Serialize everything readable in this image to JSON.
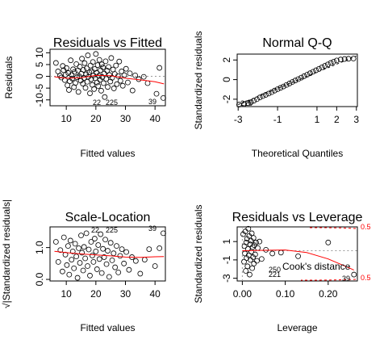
{
  "chart_data": [
    {
      "type": "scatter",
      "panel": "residuals-vs-fitted",
      "title": "Residuals vs Fitted",
      "xlabel": "Fitted values",
      "ylabel": "Residuals",
      "xlim": [
        4.5,
        43.5
      ],
      "ylim": [
        -12.5,
        11.5
      ],
      "xticks": [
        10,
        20,
        30,
        40
      ],
      "yticks": [
        -10,
        -5,
        0,
        5,
        10
      ],
      "smoother_color": "#ff0000",
      "smoother": [
        [
          6,
          -0.2
        ],
        [
          10,
          -0.8
        ],
        [
          15,
          -0.6
        ],
        [
          20,
          0.4
        ],
        [
          25,
          0.3
        ],
        [
          30,
          -0.8
        ],
        [
          35,
          -1.5
        ],
        [
          40,
          -2.3
        ],
        [
          43,
          -3.2
        ]
      ],
      "points": [
        [
          6.5,
          5.7
        ],
        [
          7.2,
          2.1
        ],
        [
          7.9,
          0.3
        ],
        [
          8.3,
          -0.5
        ],
        [
          8.8,
          4.4
        ],
        [
          9.1,
          2.6
        ],
        [
          9.5,
          -1.6
        ],
        [
          9.8,
          0.7
        ],
        [
          10.1,
          3.5
        ],
        [
          10.4,
          -3.8
        ],
        [
          10.7,
          1.4
        ],
        [
          10.9,
          -5.8
        ],
        [
          11.2,
          -2.1
        ],
        [
          11.5,
          6.8
        ],
        [
          11.8,
          0.6
        ],
        [
          12.0,
          -0.9
        ],
        [
          12.3,
          3.0
        ],
        [
          12.6,
          -4.6
        ],
        [
          12.8,
          1.9
        ],
        [
          13.1,
          -2.8
        ],
        [
          13.4,
          5.2
        ],
        [
          13.6,
          -0.4
        ],
        [
          13.9,
          2.5
        ],
        [
          14.1,
          -6.6
        ],
        [
          14.4,
          0.0
        ],
        [
          14.6,
          4.1
        ],
        [
          14.9,
          -1.8
        ],
        [
          15.1,
          1.1
        ],
        [
          15.3,
          7.5
        ],
        [
          15.6,
          -3.1
        ],
        [
          15.8,
          2.8
        ],
        [
          16.0,
          -0.7
        ],
        [
          16.2,
          5.6
        ],
        [
          16.5,
          -4.9
        ],
        [
          16.7,
          0.9
        ],
        [
          16.9,
          3.4
        ],
        [
          17.1,
          -2.3
        ],
        [
          17.3,
          8.9
        ],
        [
          17.5,
          -0.2
        ],
        [
          17.8,
          1.7
        ],
        [
          18.0,
          -7.2
        ],
        [
          18.2,
          4.6
        ],
        [
          18.4,
          -1.2
        ],
        [
          18.6,
          2.2
        ],
        [
          18.8,
          -3.6
        ],
        [
          19.0,
          6.1
        ],
        [
          19.2,
          0.4
        ],
        [
          19.4,
          -5.4
        ],
        [
          19.6,
          3.1
        ],
        [
          19.8,
          -0.8
        ],
        [
          20.0,
          9.5
        ],
        [
          20.2,
          1.5
        ],
        [
          20.4,
          -2.6
        ],
        [
          20.6,
          4.8
        ],
        [
          20.8,
          -4.1
        ],
        [
          21.0,
          0.2
        ],
        [
          21.2,
          7.0
        ],
        [
          21.4,
          -1.5
        ],
        [
          21.6,
          2.6
        ],
        [
          21.8,
          -6.1
        ],
        [
          22.0,
          5.1
        ],
        [
          22.2,
          -0.3
        ],
        [
          22.4,
          3.8
        ],
        [
          22.6,
          -2.9
        ],
        [
          22.8,
          1.2
        ],
        [
          23.0,
          -8.8
        ],
        [
          23.3,
          6.4
        ],
        [
          23.5,
          -1.1
        ],
        [
          23.8,
          2.4
        ],
        [
          24.0,
          -4.5
        ],
        [
          24.3,
          4.0
        ],
        [
          24.6,
          0.6
        ],
        [
          24.9,
          -2.2
        ],
        [
          25.2,
          7.8
        ],
        [
          25.5,
          -0.6
        ],
        [
          25.8,
          2.9
        ],
        [
          26.1,
          -5.1
        ],
        [
          26.4,
          1.0
        ],
        [
          26.8,
          4.6
        ],
        [
          27.1,
          -3.3
        ],
        [
          27.5,
          0.1
        ],
        [
          27.9,
          6.3
        ],
        [
          28.3,
          -1.9
        ],
        [
          28.7,
          2.1
        ],
        [
          29.1,
          -4.0
        ],
        [
          29.6,
          0.5
        ],
        [
          30.2,
          3.2
        ],
        [
          30.8,
          -2.6
        ],
        [
          31.5,
          1.3
        ],
        [
          32.4,
          -6.0
        ],
        [
          33.3,
          0.4
        ],
        [
          34.5,
          -1.2
        ],
        [
          36.2,
          -0.2
        ],
        [
          37.5,
          -2.9
        ],
        [
          40.5,
          -7.4
        ],
        [
          41.5,
          3.6
        ],
        [
          42.8,
          -9.2
        ]
      ],
      "point_labels": [
        "22",
        "225",
        "39"
      ]
    },
    {
      "type": "scatter",
      "panel": "normal-qq",
      "title": "Normal Q-Q",
      "xlabel": "Theoretical Quantiles",
      "ylabel": "Standardized residuals",
      "xlim": [
        -3.05,
        3.05
      ],
      "ylim": [
        -2.75,
        2.6
      ],
      "xticks": [
        -3,
        -1,
        1,
        2,
        3
      ],
      "yticks": [
        -2,
        0,
        2
      ],
      "reference_line": [
        [
          -3,
          -2.55
        ],
        [
          3,
          2.4
        ]
      ],
      "points": [
        [
          -2.95,
          -2.55
        ],
        [
          -2.7,
          -2.48
        ],
        [
          -2.5,
          -2.4
        ],
        [
          -2.35,
          -2.3
        ],
        [
          -2.2,
          -2.15
        ],
        [
          -2.05,
          -2.0
        ],
        [
          -1.9,
          -1.82
        ],
        [
          -1.75,
          -1.68
        ],
        [
          -1.6,
          -1.55
        ],
        [
          -1.45,
          -1.42
        ],
        [
          -1.3,
          -1.28
        ],
        [
          -1.15,
          -1.12
        ],
        [
          -1.0,
          -0.98
        ],
        [
          -0.85,
          -0.84
        ],
        [
          -0.7,
          -0.7
        ],
        [
          -0.55,
          -0.55
        ],
        [
          -0.4,
          -0.4
        ],
        [
          -0.25,
          -0.24
        ],
        [
          -0.1,
          -0.09
        ],
        [
          0.05,
          0.05
        ],
        [
          0.2,
          0.2
        ],
        [
          0.35,
          0.35
        ],
        [
          0.5,
          0.5
        ],
        [
          0.65,
          0.65
        ],
        [
          0.8,
          0.8
        ],
        [
          0.95,
          0.95
        ],
        [
          1.1,
          1.1
        ],
        [
          1.25,
          1.25
        ],
        [
          1.4,
          1.4
        ],
        [
          1.55,
          1.55
        ],
        [
          1.7,
          1.7
        ],
        [
          1.85,
          1.83
        ],
        [
          2.0,
          1.95
        ],
        [
          2.2,
          2.05
        ],
        [
          2.4,
          2.1
        ],
        [
          2.6,
          2.12
        ],
        [
          2.85,
          2.15
        ]
      ],
      "point_labels": [
        "225"
      ]
    },
    {
      "type": "scatter",
      "panel": "scale-location",
      "title": "Scale-Location",
      "xlabel": "Fitted values",
      "ylabel": "√|Standardized residuals|",
      "xlim": [
        4.5,
        43.5
      ],
      "ylim": [
        -0.05,
        1.65
      ],
      "xticks": [
        10,
        20,
        30,
        40
      ],
      "yticks": [
        0.0,
        1.0
      ],
      "yticklabels": [
        "0.0",
        "1.0"
      ],
      "smoother_color": "#ff0000",
      "smoother": [
        [
          6,
          0.88
        ],
        [
          10,
          0.84
        ],
        [
          15,
          0.8
        ],
        [
          20,
          0.77
        ],
        [
          25,
          0.74
        ],
        [
          30,
          0.7
        ],
        [
          35,
          0.69
        ],
        [
          40,
          0.71
        ],
        [
          43,
          0.72
        ]
      ],
      "points": [
        [
          6.5,
          1.18
        ],
        [
          7.3,
          0.55
        ],
        [
          8.0,
          0.92
        ],
        [
          8.7,
          0.25
        ],
        [
          9.2,
          1.32
        ],
        [
          9.7,
          0.78
        ],
        [
          10.2,
          0.45
        ],
        [
          10.6,
          1.05
        ],
        [
          11.0,
          0.15
        ],
        [
          11.4,
          1.22
        ],
        [
          11.8,
          0.62
        ],
        [
          12.2,
          0.88
        ],
        [
          12.6,
          0.35
        ],
        [
          13.0,
          1.12
        ],
        [
          13.4,
          0.72
        ],
        [
          13.8,
          0.05
        ],
        [
          14.2,
          0.98
        ],
        [
          14.6,
          0.52
        ],
        [
          15.0,
          1.38
        ],
        [
          15.3,
          0.84
        ],
        [
          15.7,
          0.28
        ],
        [
          16.0,
          1.02
        ],
        [
          16.4,
          0.66
        ],
        [
          16.8,
          1.45
        ],
        [
          17.2,
          0.42
        ],
        [
          17.6,
          0.94
        ],
        [
          18.0,
          0.12
        ],
        [
          18.4,
          1.18
        ],
        [
          18.8,
          0.75
        ],
        [
          19.2,
          0.55
        ],
        [
          19.6,
          1.28
        ],
        [
          20.0,
          0.88
        ],
        [
          20.4,
          0.32
        ],
        [
          20.8,
          1.08
        ],
        [
          21.2,
          0.64
        ],
        [
          21.6,
          1.42
        ],
        [
          22.0,
          0.2
        ],
        [
          22.4,
          0.96
        ],
        [
          22.8,
          0.7
        ],
        [
          23.2,
          1.25
        ],
        [
          23.6,
          0.48
        ],
        [
          24.0,
          0.9
        ],
        [
          24.5,
          0.08
        ],
        [
          25.0,
          1.15
        ],
        [
          25.5,
          0.6
        ],
        [
          26.0,
          0.82
        ],
        [
          26.5,
          0.38
        ],
        [
          27.0,
          1.05
        ],
        [
          27.6,
          0.22
        ],
        [
          28.2,
          0.74
        ],
        [
          28.8,
          0.95
        ],
        [
          29.5,
          0.5
        ],
        [
          30.3,
          0.86
        ],
        [
          31.2,
          0.3
        ],
        [
          32.2,
          0.7
        ],
        [
          33.5,
          0.58
        ],
        [
          35.0,
          0.18
        ],
        [
          36.5,
          0.62
        ],
        [
          38.0,
          0.95
        ],
        [
          40.0,
          0.42
        ],
        [
          41.5,
          0.98
        ],
        [
          42.8,
          1.45
        ]
      ],
      "point_labels": [
        "22",
        "225",
        "39"
      ]
    },
    {
      "type": "scatter",
      "panel": "residuals-vs-leverage",
      "title": "Residuals vs Leverage",
      "xlabel": "Leverage",
      "ylabel": "Standardized residuals",
      "xlim": [
        -0.012,
        0.268
      ],
      "ylim": [
        -3.3,
        2.6
      ],
      "xticks": [
        0.0,
        0.1,
        0.2
      ],
      "xticklabels": [
        "0.00",
        "0.10",
        "0.20"
      ],
      "yticks": [
        -3,
        -1,
        1
      ],
      "smoother_color": "#ff0000",
      "smoother": [
        [
          0.0,
          0.0
        ],
        [
          0.05,
          0.05
        ],
        [
          0.1,
          0.08
        ],
        [
          0.15,
          -0.2
        ],
        [
          0.2,
          -0.9
        ],
        [
          0.25,
          -1.9
        ],
        [
          0.26,
          -2.1
        ]
      ],
      "cooks_contour_label": "Cook's distance",
      "cooks_contour_color": "#ff0000",
      "cooks_level_labels": [
        "0.5",
        "0.5"
      ],
      "points": [
        [
          0.002,
          1.8
        ],
        [
          0.004,
          -1.2
        ],
        [
          0.005,
          0.5
        ],
        [
          0.006,
          -0.3
        ],
        [
          0.007,
          2.1
        ],
        [
          0.008,
          -2.2
        ],
        [
          0.009,
          0.9
        ],
        [
          0.01,
          -0.8
        ],
        [
          0.011,
          1.3
        ],
        [
          0.012,
          -1.7
        ],
        [
          0.013,
          0.2
        ],
        [
          0.014,
          2.4
        ],
        [
          0.015,
          -0.5
        ],
        [
          0.016,
          1.6
        ],
        [
          0.017,
          -2.6
        ],
        [
          0.018,
          0.7
        ],
        [
          0.019,
          -1.0
        ],
        [
          0.02,
          1.1
        ],
        [
          0.021,
          -0.1
        ],
        [
          0.022,
          1.9
        ],
        [
          0.023,
          -1.9
        ],
        [
          0.024,
          0.4
        ],
        [
          0.025,
          -0.7
        ],
        [
          0.026,
          1.4
        ],
        [
          0.027,
          -1.4
        ],
        [
          0.028,
          0.6
        ],
        [
          0.03,
          -0.4
        ],
        [
          0.032,
          0.9
        ],
        [
          0.034,
          -1.1
        ],
        [
          0.036,
          0.3
        ],
        [
          0.04,
          1.0
        ],
        [
          0.045,
          -0.9
        ],
        [
          0.055,
          0.1
        ],
        [
          0.07,
          -0.3
        ],
        [
          0.09,
          -0.2
        ],
        [
          0.13,
          -0.6
        ],
        [
          0.2,
          0.9
        ],
        [
          0.26,
          -2.6
        ]
      ],
      "point_labels": [
        "250",
        "221",
        "39"
      ]
    }
  ]
}
